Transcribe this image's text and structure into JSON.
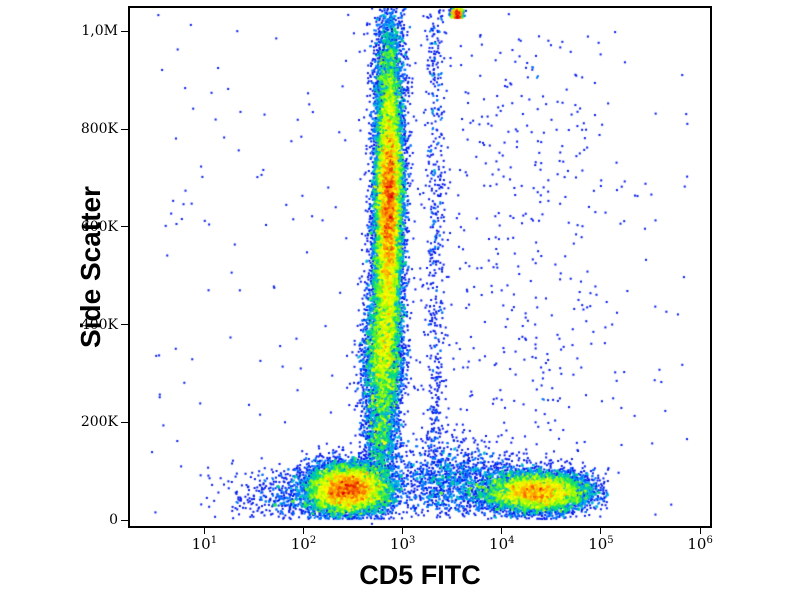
{
  "figure": {
    "xlabel": "CD5 FITC",
    "ylabel": "Side Scatter"
  },
  "chart_data": {
    "type": "scatter",
    "subtype": "flow-cytometry-pseudocolor-density-dot-plot",
    "title": "",
    "xlabel": "CD5 FITC",
    "ylabel": "Side Scatter",
    "x_scale": "log10",
    "y_scale": "linear",
    "x_range_log10": [
      0.25,
      6.1
    ],
    "y_range": [
      -12000,
      1048000
    ],
    "grid": "off",
    "legend": "none",
    "x_ticks": [
      {
        "base": "10",
        "exp": "1",
        "value": 1
      },
      {
        "base": "10",
        "exp": "2",
        "value": 2
      },
      {
        "base": "10",
        "exp": "3",
        "value": 3
      },
      {
        "base": "10",
        "exp": "4",
        "value": 4
      },
      {
        "base": "10",
        "exp": "5",
        "value": 5
      },
      {
        "base": "10",
        "exp": "6",
        "value": 6
      }
    ],
    "y_ticks": [
      {
        "label": "1,0M",
        "value": 1000000
      },
      {
        "label": "800K",
        "value": 800000
      },
      {
        "label": "600K",
        "value": 600000
      },
      {
        "label": "400K",
        "value": 400000
      },
      {
        "label": "200K",
        "value": 200000
      },
      {
        "label": "0",
        "value": 0
      }
    ],
    "colormap": [
      "#000080",
      "#0000d0",
      "#0028ff",
      "#00a8ff",
      "#00e070",
      "#a0ff00",
      "#ffff00",
      "#ff9000",
      "#e00000"
    ],
    "populations": [
      {
        "name": "granulocytes-core",
        "n": 12000,
        "x": {
          "type": "normal",
          "mean": 2.86,
          "sd": 0.068
        },
        "y": {
          "type": "normal",
          "mean": 650000,
          "sd": 110000
        }
      },
      {
        "name": "granulocytes-upper",
        "n": 2600,
        "x": {
          "type": "normal",
          "mean": 2.87,
          "sd": 0.075
        },
        "y": {
          "type": "normal",
          "mean": 880000,
          "sd": 100000
        }
      },
      {
        "name": "granulocytes-lower",
        "n": 3600,
        "x": {
          "type": "normal",
          "mean": 2.83,
          "sd": 0.082
        },
        "y": {
          "type": "normal",
          "mean": 440000,
          "sd": 95000
        }
      },
      {
        "name": "monocytes",
        "n": 2600,
        "x": {
          "type": "normal",
          "mean": 2.8,
          "sd": 0.1
        },
        "y": {
          "type": "normal",
          "mean": 330000,
          "sd": 55000
        }
      },
      {
        "name": "band-connector",
        "n": 1700,
        "x": {
          "type": "normal",
          "mean": 2.78,
          "sd": 0.088
        },
        "y": {
          "type": "normal",
          "mean": 190000,
          "sd": 60000
        }
      },
      {
        "name": "lymphocytes-cd5neg",
        "n": 9000,
        "x": {
          "type": "normal",
          "mean": 2.45,
          "sd": 0.21
        },
        "y": {
          "type": "normal",
          "mean": 63000,
          "sd": 26000
        },
        "clip": {
          "ymin": 2000
        }
      },
      {
        "name": "debris-left",
        "n": 550,
        "x": {
          "type": "normal",
          "mean": 1.95,
          "sd": 0.38
        },
        "y": {
          "type": "normal",
          "mean": 50000,
          "sd": 28000
        },
        "clip": {
          "xmin": 1.0,
          "ymin": 2000
        }
      },
      {
        "name": "lymphocytes-cd5pos",
        "n": 7200,
        "x": {
          "type": "normal",
          "mean": 4.35,
          "sd": 0.27
        },
        "y": {
          "type": "normal",
          "mean": 57000,
          "sd": 21000
        },
        "clip": {
          "xmax": 5.08,
          "ymin": 2000
        }
      },
      {
        "name": "low-ssc-bridge",
        "n": 1300,
        "x": {
          "type": "normal",
          "mean": 3.55,
          "sd": 0.35
        },
        "y": {
          "type": "normal",
          "mean": 80000,
          "sd": 38000
        },
        "clip": {
          "ymin": 2000
        }
      },
      {
        "name": "doublet-streak",
        "n": 550,
        "x": {
          "type": "normal",
          "mean": 3.33,
          "sd": 0.05
        },
        "y": {
          "type": "uniform",
          "min": 20000,
          "max": 1045000
        }
      },
      {
        "name": "top-clipped-cluster",
        "n": 500,
        "x": {
          "type": "normal",
          "mean": 3.55,
          "sd": 0.03
        },
        "y": {
          "type": "uniform",
          "min": 1028000,
          "max": 1046000
        }
      },
      {
        "name": "scatter-right-sparse",
        "n": 380,
        "x": {
          "type": "normal",
          "mean": 4.05,
          "sd": 0.6
        },
        "y": {
          "type": "uniform",
          "min": 90000,
          "max": 1000000
        },
        "clip": {
          "xmin": 3.1
        }
      },
      {
        "name": "background-sparse",
        "n": 280,
        "x": {
          "type": "uniform",
          "min": 0.45,
          "max": 5.9
        },
        "y": {
          "type": "uniform",
          "min": 2000,
          "max": 1040000
        }
      }
    ]
  }
}
